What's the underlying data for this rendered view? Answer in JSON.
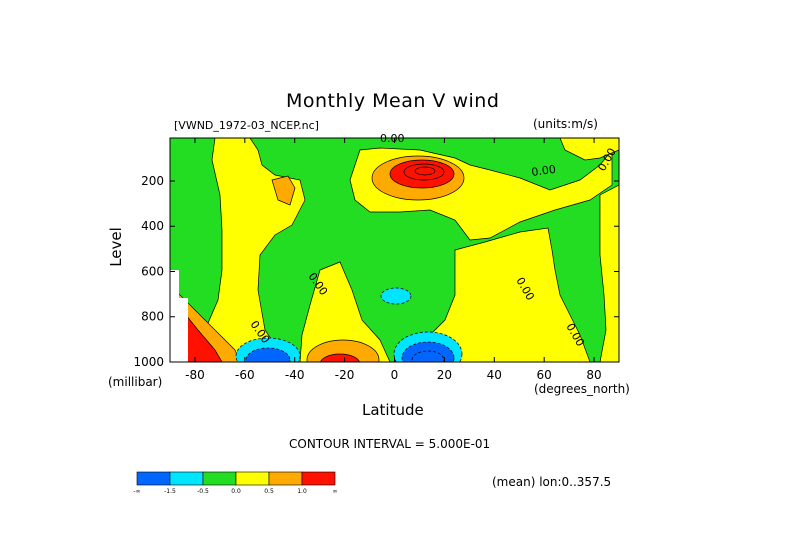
{
  "chart_data": {
    "type": "heatmap",
    "title": "Monthly Mean V wind",
    "file_label": "[VWND_1972-03_NCEP.nc]",
    "units_label": "(units:m/s)",
    "xlabel": "Latitude",
    "x_units": "(degrees_north)",
    "ylabel": "Level",
    "y_units": "(millibar)",
    "x_ticks": [
      "-80",
      "-60",
      "-40",
      "-20",
      "0",
      "20",
      "40",
      "60",
      "80"
    ],
    "x_tick_values": [
      -80,
      -60,
      -40,
      -20,
      0,
      20,
      40,
      60,
      80
    ],
    "y_ticks": [
      "200",
      "400",
      "600",
      "800",
      "1000"
    ],
    "y_tick_values": [
      200,
      400,
      600,
      800,
      1000
    ],
    "xlim": [
      -90,
      90
    ],
    "ylim": [
      1000,
      10
    ],
    "contour_labels": [
      "0.00",
      "0.00",
      "0.00",
      "0.00",
      "0.00",
      "0.00",
      "0.00"
    ],
    "contour_interval_text": "CONTOUR INTERVAL = 5.000E-01",
    "mean_text": "(mean) lon:0..357.5",
    "colorbar": {
      "colors": [
        "#0066ff",
        "#00e5ff",
        "#22dd22",
        "#ffff00",
        "#ffaa00",
        "#ff1100"
      ],
      "labels": [
        "-∞",
        "-1.5",
        "-0.5",
        "0.0",
        "0.5",
        "1.0",
        "∞"
      ]
    }
  }
}
